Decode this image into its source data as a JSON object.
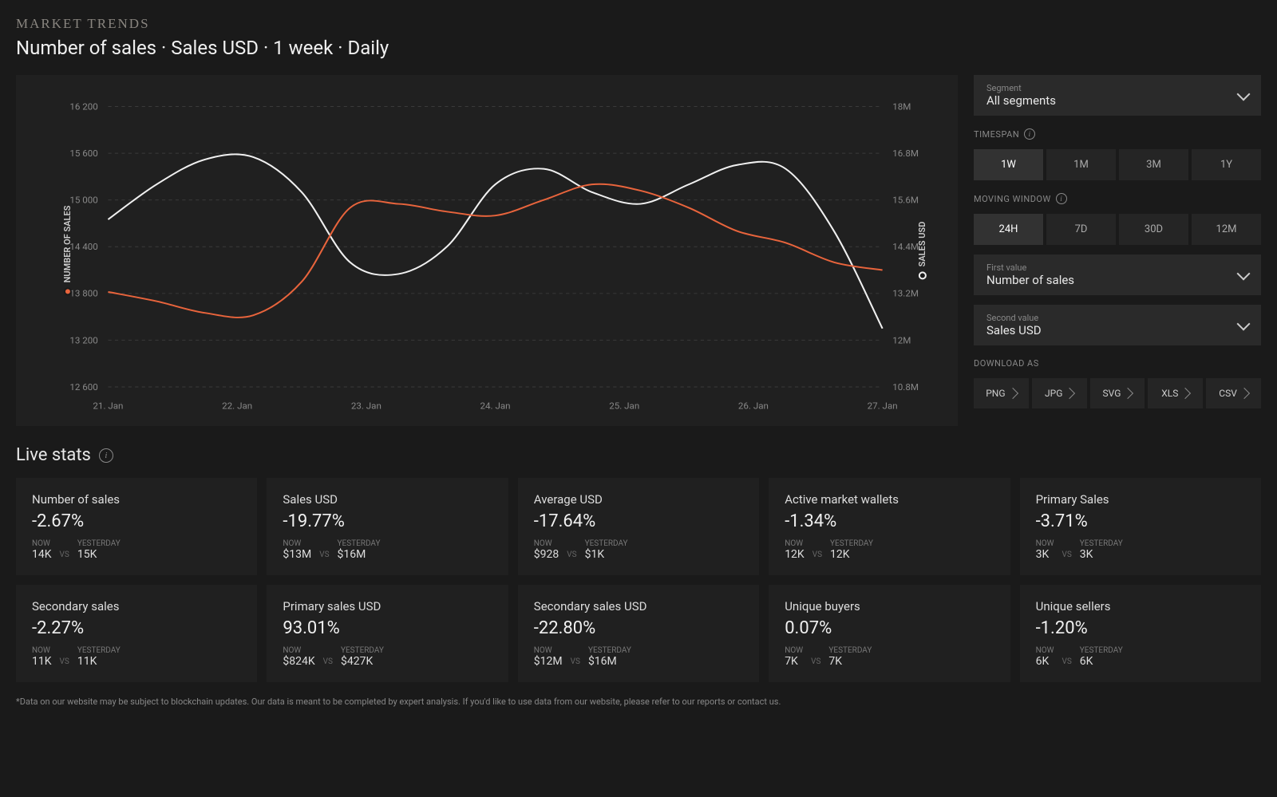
{
  "header": {
    "overline": "MARKET TRENDS",
    "title": "Number of sales · Sales USD · 1 week · Daily"
  },
  "chart": {
    "type": "line",
    "background": "#202020",
    "grid_color": "#3a3a3a",
    "grid_dash": "4 4",
    "line1": {
      "label": "NUMBER OF SALES",
      "color": "#e8643c",
      "width": 2,
      "values": [
        13820,
        13700,
        13550,
        13520,
        13950,
        14900,
        14950,
        14850,
        14800,
        15000,
        15200,
        15120,
        14900,
        14600,
        14450,
        14200,
        14100
      ]
    },
    "line2": {
      "label": "SALES USD",
      "color": "#f0f0f0",
      "width": 2,
      "values": [
        14750,
        15200,
        15520,
        15550,
        15100,
        14200,
        14050,
        14400,
        15200,
        15400,
        15100,
        14950,
        15200,
        15450,
        15400,
        14600,
        13350
      ]
    },
    "left_axis": {
      "ticks": [
        12600,
        13200,
        13800,
        14400,
        15000,
        15600,
        16200
      ],
      "min": 12600,
      "max": 16200
    },
    "right_axis": {
      "ticks": [
        "10.8M",
        "12M",
        "13.2M",
        "14.4M",
        "15.6M",
        "16.8M",
        "18M"
      ]
    },
    "x_labels": [
      "21. Jan",
      "22. Jan",
      "23. Jan",
      "24. Jan",
      "25. Jan",
      "26. Jan",
      "27. Jan"
    ]
  },
  "side": {
    "segment": {
      "label": "Segment",
      "value": "All segments"
    },
    "timespan": {
      "heading": "TIMESPAN",
      "options": [
        "1W",
        "1M",
        "3M",
        "1Y"
      ],
      "active": "1W"
    },
    "window": {
      "heading": "MOVING WINDOW",
      "options": [
        "24H",
        "7D",
        "30D",
        "12M"
      ],
      "active": "24H"
    },
    "first": {
      "label": "First value",
      "value": "Number of sales"
    },
    "second": {
      "label": "Second value",
      "value": "Sales USD"
    },
    "download": {
      "heading": "DOWNLOAD AS",
      "options": [
        "PNG",
        "JPG",
        "SVG",
        "XLS",
        "CSV"
      ]
    }
  },
  "live_stats": {
    "heading": "Live stats",
    "now_label": "NOW",
    "yesterday_label": "YESTERDAY",
    "vs_label": "VS",
    "cards": [
      {
        "title": "Number of sales",
        "pct": "-2.67%",
        "now": "14K",
        "yesterday": "15K"
      },
      {
        "title": "Sales USD",
        "pct": "-19.77%",
        "now": "$13M",
        "yesterday": "$16M"
      },
      {
        "title": "Average USD",
        "pct": "-17.64%",
        "now": "$928",
        "yesterday": "$1K"
      },
      {
        "title": "Active market wallets",
        "pct": "-1.34%",
        "now": "12K",
        "yesterday": "12K"
      },
      {
        "title": "Primary Sales",
        "pct": "-3.71%",
        "now": "3K",
        "yesterday": "3K"
      },
      {
        "title": "Secondary sales",
        "pct": "-2.27%",
        "now": "11K",
        "yesterday": "11K"
      },
      {
        "title": "Primary sales USD",
        "pct": "93.01%",
        "now": "$824K",
        "yesterday": "$427K"
      },
      {
        "title": "Secondary sales USD",
        "pct": "-22.80%",
        "now": "$12M",
        "yesterday": "$16M"
      },
      {
        "title": "Unique buyers",
        "pct": "0.07%",
        "now": "7K",
        "yesterday": "7K"
      },
      {
        "title": "Unique sellers",
        "pct": "-1.20%",
        "now": "6K",
        "yesterday": "6K"
      }
    ]
  },
  "footnote": "*Data on our website may be subject to blockchain updates. Our data is meant to be completed by expert analysis. If you'd like to use data from our website, please refer to our reports or contact us."
}
